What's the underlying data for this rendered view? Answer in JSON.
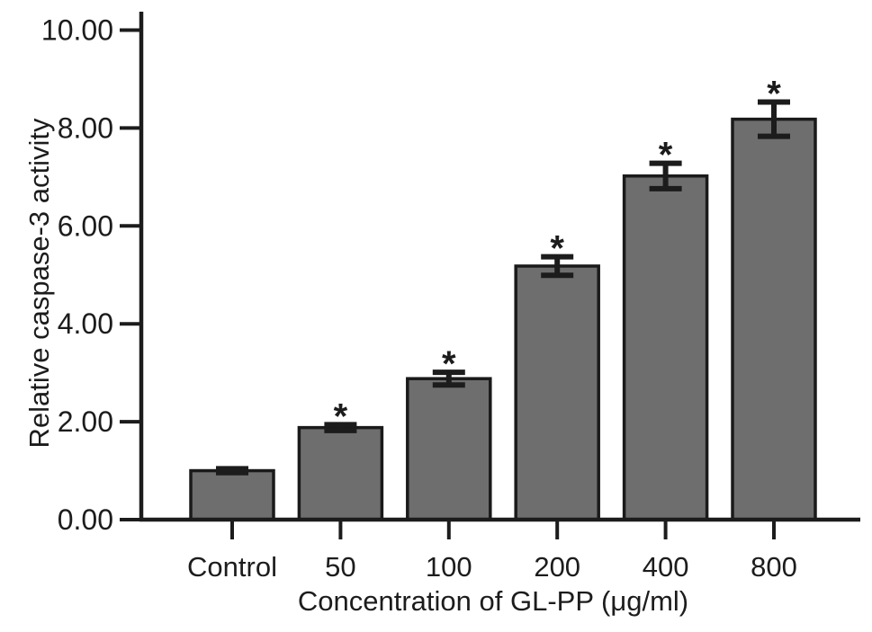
{
  "chart_data": {
    "type": "bar",
    "title": "",
    "categories": [
      "Control",
      "50",
      "100",
      "200",
      "400",
      "800"
    ],
    "values": [
      1.0,
      1.88,
      2.88,
      5.18,
      7.02,
      8.18
    ],
    "errors": [
      0.04,
      0.06,
      0.13,
      0.19,
      0.26,
      0.35
    ],
    "significance": [
      "",
      "*",
      "*",
      "*",
      "*",
      "*"
    ],
    "xlabel": "Concentration of GL-PP (μg/ml)",
    "ylabel": "Relative caspase-3 activity",
    "ylim": [
      0,
      10
    ],
    "ytick_step": 2,
    "ytick_labels": [
      "0.00",
      "2.00",
      "4.00",
      "6.00",
      "8.00",
      "10.00"
    ],
    "bar_color": "#6e6e6e",
    "bar_edge_color": "#1a1a1a",
    "axis_color": "#1c1c1c",
    "grid": false,
    "legend": "none"
  }
}
